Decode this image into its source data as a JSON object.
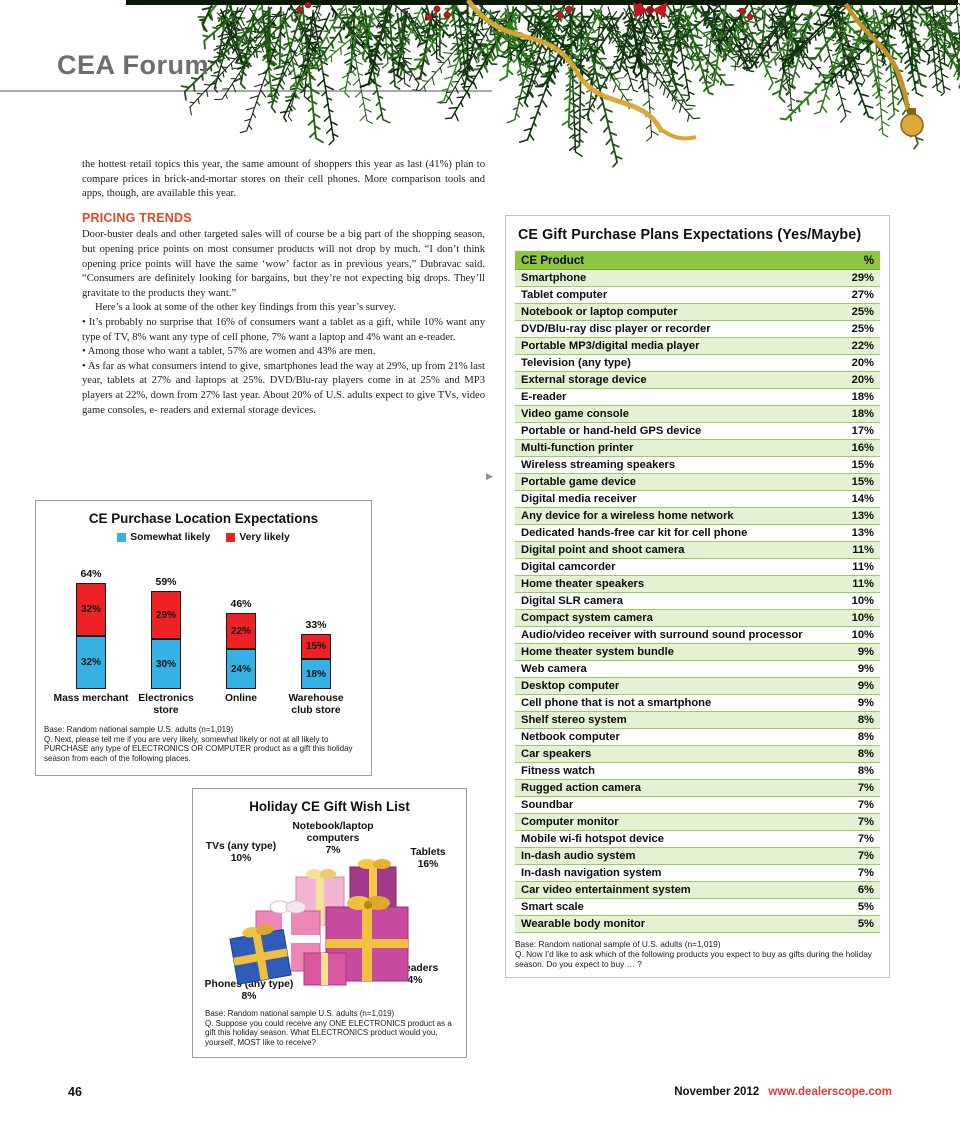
{
  "page": {
    "brand": "CEA Forum",
    "page_number": "46",
    "footer_date": "November 2012",
    "footer_url": "www.dealerscope.com",
    "continuation_arrow": "▶"
  },
  "article": {
    "intro": "the hottest retail topics this year, the same amount of shoppers this year as last (41%) plan to compare prices in brick-and-mortar stores on their cell phones. More comparison tools and apps, though, are available this year.",
    "heading": "PRICING TRENDS",
    "p1": "Door-buster deals and other targeted sales will of course be a big part of the shopping season, but opening price points on most consumer products will not drop by much. “I don’t think opening price points will have the same ‘wow’ factor as in previous years,” Dubravac said. “Consumers are definitely looking for bargains, but they’re not expecting big drops. They’ll gravitate to the products they want.”",
    "p2": "Here’s a look at some of the other key findings from this year’s survey.",
    "bullets": [
      "• It’s probably no surprise that 16% of consumers want a tablet as a gift, while 10% want any type of TV, 8% want any type of cell phone, 7% want a laptop and 4% want an e-reader.",
      "• Among those who want a tablet, 57% are women and 43% are men.",
      "• As far as what consumers intend to give, smartphones lead the way at 29%, up from 21% last year, tablets at 27% and laptops at 25%. DVD/Blu-ray players come in at 25% and MP3 players at 22%, down from 27% last year. About 20% of U.S. adults expect to give TVs, video game consoles, e- readers and external storage devices."
    ]
  },
  "gift_table": {
    "title": "CE Gift Purchase Plans Expectations (Yes/Maybe)",
    "columns": [
      "CE Product",
      "%"
    ],
    "rows": [
      [
        "Smartphone",
        "29%"
      ],
      [
        "Tablet computer",
        "27%"
      ],
      [
        "Notebook or laptop computer",
        "25%"
      ],
      [
        "DVD/Blu-ray disc player or recorder",
        "25%"
      ],
      [
        "Portable MP3/digital media player",
        "22%"
      ],
      [
        "Television (any type)",
        "20%"
      ],
      [
        "External storage device",
        "20%"
      ],
      [
        "E-reader",
        "18%"
      ],
      [
        "Video game console",
        "18%"
      ],
      [
        "Portable or hand-held GPS device",
        "17%"
      ],
      [
        "Multi-function printer",
        "16%"
      ],
      [
        "Wireless streaming speakers",
        "15%"
      ],
      [
        "Portable game device",
        "15%"
      ],
      [
        "Digital media receiver",
        "14%"
      ],
      [
        "Any device for a wireless home network",
        "13%"
      ],
      [
        "Dedicated hands-free car kit for cell phone",
        "13%"
      ],
      [
        "Digital point and shoot camera",
        "11%"
      ],
      [
        "Digital camcorder",
        "11%"
      ],
      [
        "Home theater speakers",
        "11%"
      ],
      [
        "Digital SLR camera",
        "10%"
      ],
      [
        "Compact system camera",
        "10%"
      ],
      [
        "Audio/video receiver with surround sound processor",
        "10%"
      ],
      [
        "Home theater system bundle",
        "9%"
      ],
      [
        "Web camera",
        "9%"
      ],
      [
        "Desktop computer",
        "9%"
      ],
      [
        "Cell phone that is not a smartphone",
        "9%"
      ],
      [
        "Shelf stereo system",
        "8%"
      ],
      [
        "Netbook computer",
        "8%"
      ],
      [
        "Car speakers",
        "8%"
      ],
      [
        "Fitness watch",
        "8%"
      ],
      [
        "Rugged action camera",
        "7%"
      ],
      [
        "Soundbar",
        "7%"
      ],
      [
        "Computer monitor",
        "7%"
      ],
      [
        "Mobile wi-fi hotspot device",
        "7%"
      ],
      [
        "In-dash audio system",
        "7%"
      ],
      [
        "In-dash navigation system",
        "7%"
      ],
      [
        "Car video entertainment system",
        "6%"
      ],
      [
        "Smart scale",
        "5%"
      ],
      [
        "Wearable body monitor",
        "5%"
      ]
    ],
    "footnote_base": "Base: Random national sample of U.S. adults (n=1,019)",
    "footnote_q": "Q. Now I’d like to ask which of the following products you expect to buy as gifts during the holiday season. Do you expect to buy … ?"
  },
  "chart_data": [
    {
      "type": "bar",
      "stacked": true,
      "title": "CE Purchase Location Expectations",
      "categories": [
        "Mass merchant",
        "Electronics store",
        "Online",
        "Warehouse club store"
      ],
      "series": [
        {
          "name": "Somewhat likely",
          "color": "#35b1e4",
          "values": [
            32,
            30,
            24,
            18
          ]
        },
        {
          "name": "Very likely",
          "color": "#ee2224",
          "values": [
            32,
            29,
            22,
            15
          ]
        }
      ],
      "totals": [
        64,
        59,
        46,
        33
      ],
      "unit": "%",
      "ylim": [
        0,
        70
      ],
      "grid": false,
      "legend_position": "top",
      "footnote_base": "Base: Random national sample U.S. adults (n=1,019)",
      "footnote_q": "Q. Next, please tell me if you are very likely, somewhat likely or not at all likely to PURCHASE any type of ELECTRONICS OR COMPUTER product as a gift this holiday season from each of the following places."
    },
    {
      "type": "pictorial",
      "title": "Holiday CE Gift Wish List",
      "items": [
        {
          "label": "TVs (any type)",
          "value": "10%"
        },
        {
          "label": "Notebook/laptop computers",
          "value": "7%"
        },
        {
          "label": "Tablets",
          "value": "16%"
        },
        {
          "label": "e-readers",
          "value": "4%"
        },
        {
          "label": "Phones (any type)",
          "value": "8%"
        }
      ],
      "footnote_base": "Base: Random national sample U.S. adults (n=1,019)",
      "footnote_q": "Q. Suppose you could receive any ONE ELECTRONICS product as a gift this holiday season. What ELECTRONICS product would you, yourself, MOST like to receive?"
    }
  ],
  "colors": {
    "table_header_green": "#8dc63f",
    "table_row_alt_green": "#e4f1d3",
    "heading_red": "#e0492a",
    "legend_blue": "#35b1e4",
    "legend_red": "#ee2224",
    "footer_url_red": "#e0392e"
  }
}
